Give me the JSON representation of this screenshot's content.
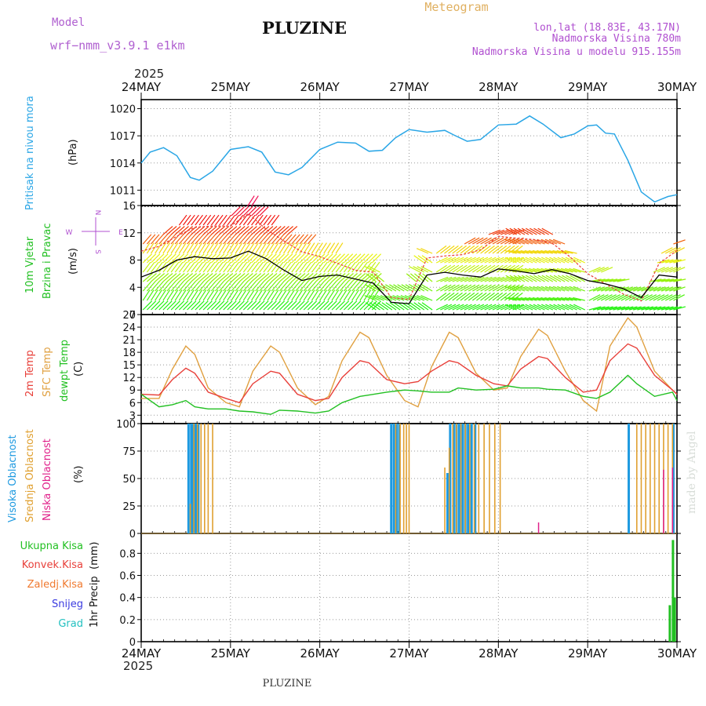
{
  "header": {
    "model_label": "Model",
    "model_name": "wrf−nmm_v3.9.1  e1km",
    "title": "PLUZINE",
    "product": "Meteogram",
    "lonlat": "lon,lat (18.83E, 43.17N)",
    "elevation": "Nadmorska Visina 780m",
    "model_elevation": "Nadmorska Visina u modelu 915.155m",
    "top_year": "2025",
    "bottom_year": "2025",
    "footer_title": "PLUZINE",
    "watermark": "made by Angel"
  },
  "colors": {
    "pressure": "#2aa6e6",
    "temp2m": "#e8403a",
    "sfc_temp": "#e0a040",
    "dewpt": "#22c022",
    "high_cloud": "#1e9ae0",
    "mid_cloud": "#e0a030",
    "low_cloud": "#e0208a",
    "total_precip": "#22c022",
    "conv_precip": "#e8403a",
    "frz_precip": "#f07a30",
    "snow": "#3a3ae0",
    "hail": "#22c0c0",
    "wind_speed_line": "#000000",
    "gust_marks": "#e8403a"
  },
  "chart_data": [
    {
      "id": "pressure",
      "type": "line",
      "title": "",
      "ylabel": "Pritisak na nivou mora",
      "yunit": "(hPa)",
      "x": [
        0,
        0.1,
        0.25,
        0.4,
        0.55,
        0.65,
        0.8,
        1.0,
        1.2,
        1.35,
        1.5,
        1.65,
        1.8,
        2.0,
        2.2,
        2.4,
        2.55,
        2.7,
        2.85,
        3.0,
        3.2,
        3.4,
        3.5,
        3.65,
        3.8,
        4.0,
        4.2,
        4.35,
        4.5,
        4.7,
        4.85,
        5.0,
        5.1,
        5.2,
        5.3,
        5.45,
        5.6,
        5.75,
        5.9,
        6.0
      ],
      "y": [
        1014.0,
        1015.2,
        1015.7,
        1014.8,
        1012.4,
        1012.1,
        1013.1,
        1015.5,
        1015.8,
        1015.2,
        1013.0,
        1012.7,
        1013.5,
        1015.5,
        1016.3,
        1016.2,
        1015.3,
        1015.4,
        1016.8,
        1017.7,
        1017.4,
        1017.6,
        1017.1,
        1016.4,
        1016.6,
        1018.2,
        1018.3,
        1019.2,
        1018.3,
        1016.8,
        1017.2,
        1018.1,
        1018.2,
        1017.3,
        1017.2,
        1014.3,
        1010.8,
        1009.7,
        1010.3,
        1010.5
      ],
      "ylim": [
        1009.3,
        1021.0
      ],
      "yticks": [
        "1020",
        "1017",
        "1014",
        "1011"
      ]
    },
    {
      "id": "wind",
      "type": "line",
      "title": "",
      "ylabel": "10m Vjetar",
      "ylabel2": "Brzina i Pravac",
      "yunit": "(m/s)",
      "compass": [
        "N",
        "E",
        "S",
        "W"
      ],
      "x": [
        0,
        0.2,
        0.4,
        0.6,
        0.8,
        1.0,
        1.2,
        1.4,
        1.6,
        1.8,
        2.0,
        2.2,
        2.4,
        2.6,
        2.8,
        3.0,
        3.2,
        3.4,
        3.6,
        3.8,
        4.0,
        4.2,
        4.4,
        4.6,
        4.8,
        5.0,
        5.2,
        5.4,
        5.6,
        5.8,
        6.0
      ],
      "speed": [
        5.5,
        6.5,
        8.0,
        8.5,
        8.2,
        8.3,
        9.3,
        8.2,
        6.5,
        5.0,
        5.6,
        5.8,
        5.2,
        4.6,
        1.8,
        1.6,
        5.8,
        6.2,
        5.8,
        5.5,
        6.7,
        6.4,
        6.0,
        6.6,
        6.0,
        5.0,
        4.5,
        3.8,
        2.5,
        5.8,
        5.5
      ],
      "gust": [
        9.3,
        10.0,
        11.5,
        12.8,
        13.0,
        13.0,
        14.8,
        12.5,
        10.8,
        9.2,
        8.5,
        7.5,
        6.5,
        6.2,
        2.5,
        2.2,
        8.3,
        8.6,
        8.8,
        9.5,
        11.5,
        11.2,
        11.0,
        10.5,
        8.5,
        6.0,
        4.5,
        3.0,
        2.0,
        7.5,
        9.4
      ],
      "ylim": [
        0,
        16
      ],
      "yticks": [
        "16",
        "12",
        "8",
        "4",
        "0"
      ]
    },
    {
      "id": "temperature",
      "type": "line",
      "title": "",
      "ylabel": "2m Temp",
      "ylabel2": "SFC Temp",
      "ylabel3": "dewpt Temp",
      "yunit": "(C)",
      "x": [
        0,
        0.2,
        0.35,
        0.5,
        0.6,
        0.75,
        0.95,
        1.1,
        1.25,
        1.45,
        1.55,
        1.75,
        1.95,
        2.1,
        2.25,
        2.45,
        2.55,
        2.75,
        2.95,
        3.1,
        3.25,
        3.45,
        3.55,
        3.75,
        3.95,
        4.1,
        4.25,
        4.45,
        4.55,
        4.75,
        4.95,
        5.1,
        5.25,
        5.45,
        5.55,
        5.75,
        5.95,
        6.0
      ],
      "series": [
        {
          "name": "2m Temp",
          "values": [
            8.0,
            7.8,
            11.5,
            14.2,
            13.0,
            8.5,
            7.0,
            6.0,
            10.5,
            13.5,
            13.0,
            8.0,
            6.5,
            7.0,
            12.0,
            16.0,
            15.5,
            11.5,
            10.5,
            11.0,
            13.5,
            16.0,
            15.5,
            12.5,
            10.5,
            10.0,
            14.0,
            17.0,
            16.5,
            12.0,
            8.5,
            9.0,
            16.0,
            20.0,
            19.0,
            12.5,
            9.0,
            8.0
          ]
        },
        {
          "name": "SFC Temp",
          "values": [
            7.0,
            7.0,
            14.0,
            19.5,
            17.5,
            9.5,
            6.0,
            5.0,
            13.5,
            19.5,
            18.0,
            9.5,
            5.5,
            7.5,
            16.0,
            22.8,
            21.5,
            12.5,
            6.5,
            5.0,
            14.5,
            22.8,
            21.5,
            13.0,
            9.0,
            9.5,
            17.0,
            23.5,
            22.0,
            13.5,
            6.5,
            4.0,
            19.5,
            26.2,
            24.0,
            13.5,
            9.0,
            8.0
          ]
        },
        {
          "name": "dewpt Temp",
          "values": [
            8.0,
            5.0,
            5.5,
            6.5,
            5.0,
            4.5,
            4.5,
            4.0,
            3.8,
            3.2,
            4.2,
            4.0,
            3.5,
            4.0,
            6.0,
            7.5,
            7.8,
            8.5,
            9.0,
            8.8,
            8.5,
            8.5,
            9.5,
            9.0,
            9.2,
            10.0,
            9.5,
            9.5,
            9.2,
            9.0,
            7.5,
            7.0,
            8.5,
            12.5,
            10.5,
            7.5,
            8.5,
            6.5
          ]
        }
      ],
      "ylim": [
        1.0,
        27.0
      ],
      "yticks": [
        "27",
        "24",
        "21",
        "18",
        "15",
        "12",
        "9",
        "6",
        "3"
      ]
    },
    {
      "id": "cloud",
      "type": "bar",
      "title": "",
      "ylabel": "Visoka Oblacnost",
      "ylabel2": "Srednja Oblacnost",
      "ylabel3": "Niska Oblacnost",
      "yunit": "(%)",
      "series": [
        {
          "name": "Visoka Oblacnost",
          "points": [
            [
              0.53,
              100
            ],
            [
              0.56,
              100
            ],
            [
              0.58,
              100
            ],
            [
              0.6,
              100
            ],
            [
              0.62,
              100
            ],
            [
              0.64,
              100
            ],
            [
              2.8,
              100
            ],
            [
              2.83,
              100
            ],
            [
              2.86,
              100
            ],
            [
              2.89,
              100
            ],
            [
              3.43,
              55
            ],
            [
              3.46,
              100
            ],
            [
              3.5,
              100
            ],
            [
              3.53,
              100
            ],
            [
              3.56,
              100
            ],
            [
              3.6,
              100
            ],
            [
              3.63,
              100
            ],
            [
              3.66,
              100
            ],
            [
              3.7,
              100
            ],
            [
              3.74,
              100
            ],
            [
              5.46,
              100
            ],
            [
              5.96,
              100
            ]
          ]
        },
        {
          "name": "Srednja Oblacnost",
          "points": [
            [
              0.55,
              27
            ],
            [
              0.59,
              100
            ],
            [
              0.63,
              100
            ],
            [
              0.67,
              100
            ],
            [
              0.71,
              100
            ],
            [
              0.75,
              100
            ],
            [
              0.8,
              100
            ],
            [
              2.85,
              100
            ],
            [
              2.9,
              100
            ],
            [
              2.94,
              100
            ],
            [
              2.97,
              100
            ],
            [
              3.0,
              100
            ],
            [
              3.4,
              60
            ],
            [
              3.45,
              78
            ],
            [
              3.49,
              100
            ],
            [
              3.53,
              100
            ],
            [
              3.58,
              100
            ],
            [
              3.63,
              100
            ],
            [
              3.68,
              100
            ],
            [
              3.73,
              100
            ],
            [
              3.78,
              100
            ],
            [
              3.84,
              100
            ],
            [
              3.9,
              100
            ],
            [
              3.96,
              100
            ],
            [
              4.02,
              100
            ],
            [
              5.55,
              100
            ],
            [
              5.6,
              100
            ],
            [
              5.65,
              100
            ],
            [
              5.7,
              100
            ],
            [
              5.75,
              100
            ],
            [
              5.8,
              100
            ],
            [
              5.85,
              100
            ],
            [
              5.9,
              100
            ],
            [
              5.95,
              100
            ]
          ]
        },
        {
          "name": "Niska Oblacnost",
          "points": [
            [
              4.45,
              10
            ],
            [
              5.85,
              58
            ],
            [
              5.95,
              60
            ]
          ]
        }
      ],
      "ylim": [
        0,
        100
      ],
      "yticks": [
        "100",
        "75",
        "50",
        "25",
        "0"
      ]
    },
    {
      "id": "precip",
      "type": "bar",
      "title": "",
      "ylabel": "1hr Precip",
      "yunit": "(mm)",
      "legend": [
        "Ukupna Kisa",
        "Konvek.Kisa",
        "Zaledj.Kisa",
        "Snijeg",
        "Grad"
      ],
      "series": [
        {
          "name": "Ukupna Kisa",
          "points": [
            [
              5.92,
              0.33
            ],
            [
              5.955,
              0.92
            ],
            [
              5.975,
              0.4
            ]
          ]
        }
      ],
      "ylim": [
        0,
        0.98
      ],
      "yticks": [
        "0.8",
        "0.6",
        "0.4",
        "0.2",
        "0"
      ]
    }
  ],
  "x_axis": {
    "labels": [
      "24MAY",
      "25MAY",
      "26MAY",
      "27MAY",
      "28MAY",
      "29MAY",
      "30MAY"
    ]
  }
}
